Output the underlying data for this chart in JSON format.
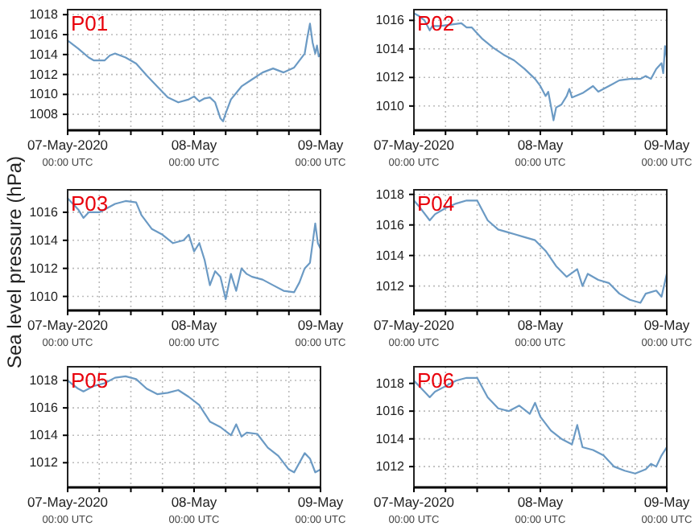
{
  "chart_data": [
    {
      "type": "line",
      "title": "P01",
      "color": "#6b9ac4",
      "grid": true,
      "ylim": [
        1006.4,
        1018.5
      ],
      "yticks": [
        1008,
        1010,
        1012,
        1014,
        1016,
        1018
      ],
      "xlim": [
        "2020-05-07T00:00",
        "2020-05-09T00:00"
      ],
      "xticks": [
        {
          "value": "2020-05-07T00:00",
          "label": "07-May-2020\n00:00 UTC"
        },
        {
          "value": "2020-05-07T06:00",
          "label": null
        },
        {
          "value": "2020-05-07T12:00",
          "label": null
        },
        {
          "value": "2020-05-07T18:00",
          "label": null
        },
        {
          "value": "2020-05-08T00:00",
          "label": "08-May\n00:00 UTC"
        },
        {
          "value": "2020-05-08T06:00",
          "label": null
        },
        {
          "value": "2020-05-08T12:00",
          "label": null
        },
        {
          "value": "2020-05-08T18:00",
          "label": null
        },
        {
          "value": "2020-05-09T00:00",
          "label": "09-May\n00:00 UTC"
        }
      ],
      "x": [
        "2020-05-07T00:00",
        "2020-05-07T02:00",
        "2020-05-07T04:00",
        "2020-05-07T05:00",
        "2020-05-07T07:00",
        "2020-05-07T08:00",
        "2020-05-07T09:00",
        "2020-05-07T11:00",
        "2020-05-07T13:00",
        "2020-05-07T15:00",
        "2020-05-07T17:00",
        "2020-05-07T19:00",
        "2020-05-07T21:00",
        "2020-05-07T23:00",
        "2020-05-08T00:00",
        "2020-05-08T01:00",
        "2020-05-08T02:00",
        "2020-05-08T03:00",
        "2020-05-08T04:00",
        "2020-05-08T05:00",
        "2020-05-08T05:30",
        "2020-05-08T06:00",
        "2020-05-08T07:00",
        "2020-05-08T09:00",
        "2020-05-08T11:00",
        "2020-05-08T13:00",
        "2020-05-08T15:00",
        "2020-05-08T17:00",
        "2020-05-08T19:00",
        "2020-05-08T21:00",
        "2020-05-08T21:30",
        "2020-05-08T22:00",
        "2020-05-08T22:30",
        "2020-05-08T23:00",
        "2020-05-08T23:20",
        "2020-05-08T23:40",
        "2020-05-09T00:00"
      ],
      "values": [
        1015.4,
        1014.6,
        1013.7,
        1013.4,
        1013.4,
        1013.9,
        1014.1,
        1013.7,
        1013.1,
        1011.9,
        1010.8,
        1009.7,
        1009.2,
        1009.5,
        1009.8,
        1009.3,
        1009.6,
        1009.7,
        1009.2,
        1007.6,
        1007.3,
        1008.1,
        1009.5,
        1010.8,
        1011.5,
        1012.2,
        1012.6,
        1012.2,
        1012.7,
        1014.1,
        1015.7,
        1017.1,
        1015.2,
        1014.1,
        1014.9,
        1013.8,
        1014.1
      ]
    },
    {
      "type": "line",
      "title": "P02",
      "color": "#6b9ac4",
      "grid": true,
      "ylim": [
        1008.3,
        1016.75
      ],
      "yticks": [
        1010,
        1012,
        1014,
        1016
      ],
      "xlim": [
        "2020-05-07T00:00",
        "2020-05-09T00:00"
      ],
      "xticks": [
        {
          "value": "2020-05-07T00:00",
          "label": "07-May-2020\n00:00 UTC"
        },
        {
          "value": "2020-05-07T06:00",
          "label": null
        },
        {
          "value": "2020-05-07T12:00",
          "label": null
        },
        {
          "value": "2020-05-07T18:00",
          "label": null
        },
        {
          "value": "2020-05-08T00:00",
          "label": "08-May\n00:00 UTC"
        },
        {
          "value": "2020-05-08T06:00",
          "label": null
        },
        {
          "value": "2020-05-08T12:00",
          "label": null
        },
        {
          "value": "2020-05-08T18:00",
          "label": null
        },
        {
          "value": "2020-05-09T00:00",
          "label": "09-May\n00:00 UTC"
        }
      ],
      "x": [
        "2020-05-07T00:00",
        "2020-05-07T01:00",
        "2020-05-07T02:00",
        "2020-05-07T03:00",
        "2020-05-07T03:30",
        "2020-05-07T05:00",
        "2020-05-07T07:00",
        "2020-05-07T09:00",
        "2020-05-07T10:00",
        "2020-05-07T11:00",
        "2020-05-07T13:00",
        "2020-05-07T15:00",
        "2020-05-07T17:00",
        "2020-05-07T19:00",
        "2020-05-07T21:00",
        "2020-05-07T23:00",
        "2020-05-08T00:00",
        "2020-05-08T01:00",
        "2020-05-08T01:30",
        "2020-05-08T02:00",
        "2020-05-08T02:30",
        "2020-05-08T03:00",
        "2020-05-08T04:00",
        "2020-05-08T05:00",
        "2020-05-08T05:30",
        "2020-05-08T06:00",
        "2020-05-08T08:00",
        "2020-05-08T10:00",
        "2020-05-08T11:00",
        "2020-05-08T13:00",
        "2020-05-08T15:00",
        "2020-05-08T17:00",
        "2020-05-08T19:00",
        "2020-05-08T20:00",
        "2020-05-08T21:00",
        "2020-05-08T22:00",
        "2020-05-08T23:00",
        "2020-05-08T23:20",
        "2020-05-08T23:40",
        "2020-05-09T00:00"
      ],
      "values": [
        1016.5,
        1016.3,
        1016.0,
        1015.3,
        1015.6,
        1015.6,
        1015.7,
        1015.8,
        1015.5,
        1015.5,
        1014.7,
        1014.1,
        1013.6,
        1013.2,
        1012.6,
        1011.9,
        1011.4,
        1010.7,
        1011.0,
        1010.0,
        1009.0,
        1009.9,
        1010.1,
        1010.7,
        1011.2,
        1010.6,
        1010.9,
        1011.4,
        1011.0,
        1011.4,
        1011.8,
        1011.9,
        1011.9,
        1012.1,
        1011.9,
        1012.6,
        1013.0,
        1012.3,
        1014.2,
        1013.4
      ]
    },
    {
      "type": "line",
      "title": "P03",
      "ylabel": "Sea level pressure (hPa)",
      "color": "#6b9ac4",
      "grid": true,
      "ylim": [
        1009.0,
        1017.6
      ],
      "yticks": [
        1010,
        1012,
        1014,
        1016
      ],
      "xlim": [
        "2020-05-07T00:00",
        "2020-05-09T00:00"
      ],
      "xticks": [
        {
          "value": "2020-05-07T00:00",
          "label": "07-May-2020\n00:00 UTC"
        },
        {
          "value": "2020-05-07T06:00",
          "label": null
        },
        {
          "value": "2020-05-07T12:00",
          "label": null
        },
        {
          "value": "2020-05-07T18:00",
          "label": null
        },
        {
          "value": "2020-05-08T00:00",
          "label": "08-May\n00:00 UTC"
        },
        {
          "value": "2020-05-08T06:00",
          "label": null
        },
        {
          "value": "2020-05-08T12:00",
          "label": null
        },
        {
          "value": "2020-05-08T18:00",
          "label": null
        },
        {
          "value": "2020-05-09T00:00",
          "label": "09-May\n00:00 UTC"
        }
      ],
      "x": [
        "2020-05-07T00:00",
        "2020-05-07T02:00",
        "2020-05-07T03:00",
        "2020-05-07T04:00",
        "2020-05-07T06:00",
        "2020-05-07T08:00",
        "2020-05-07T09:00",
        "2020-05-07T11:00",
        "2020-05-07T13:00",
        "2020-05-07T14:00",
        "2020-05-07T16:00",
        "2020-05-07T18:00",
        "2020-05-07T20:00",
        "2020-05-07T22:00",
        "2020-05-07T23:00",
        "2020-05-08T00:00",
        "2020-05-08T01:00",
        "2020-05-08T02:00",
        "2020-05-08T03:00",
        "2020-05-08T04:00",
        "2020-05-08T05:00",
        "2020-05-08T06:00",
        "2020-05-08T07:00",
        "2020-05-08T08:00",
        "2020-05-08T09:00",
        "2020-05-08T10:00",
        "2020-05-08T11:00",
        "2020-05-08T13:00",
        "2020-05-08T15:00",
        "2020-05-08T17:00",
        "2020-05-08T19:00",
        "2020-05-08T20:00",
        "2020-05-08T21:00",
        "2020-05-08T22:00",
        "2020-05-08T23:00",
        "2020-05-08T23:30",
        "2020-05-09T00:00"
      ],
      "values": [
        1017.0,
        1016.2,
        1015.6,
        1016.0,
        1016.0,
        1016.4,
        1016.6,
        1016.8,
        1016.7,
        1015.8,
        1014.8,
        1014.4,
        1013.8,
        1014.0,
        1014.4,
        1013.2,
        1013.8,
        1012.6,
        1010.8,
        1011.8,
        1011.4,
        1009.8,
        1011.6,
        1010.4,
        1012.0,
        1011.6,
        1011.4,
        1011.2,
        1010.8,
        1010.4,
        1010.3,
        1011.0,
        1012.0,
        1012.4,
        1015.2,
        1013.8,
        1013.4
      ]
    },
    {
      "type": "line",
      "title": "P04",
      "color": "#6b9ac4",
      "grid": true,
      "ylim": [
        1010.4,
        1018.3
      ],
      "yticks": [
        1012,
        1014,
        1016,
        1018
      ],
      "xlim": [
        "2020-05-07T00:00",
        "2020-05-09T00:00"
      ],
      "xticks": [
        {
          "value": "2020-05-07T00:00",
          "label": "07-May-2020\n00:00 UTC"
        },
        {
          "value": "2020-05-07T06:00",
          "label": null
        },
        {
          "value": "2020-05-07T12:00",
          "label": null
        },
        {
          "value": "2020-05-07T18:00",
          "label": null
        },
        {
          "value": "2020-05-08T00:00",
          "label": "08-May\n00:00 UTC"
        },
        {
          "value": "2020-05-08T06:00",
          "label": null
        },
        {
          "value": "2020-05-08T12:00",
          "label": null
        },
        {
          "value": "2020-05-08T18:00",
          "label": null
        },
        {
          "value": "2020-05-09T00:00",
          "label": "09-May\n00:00 UTC"
        }
      ],
      "x": [
        "2020-05-07T00:00",
        "2020-05-07T01:00",
        "2020-05-07T03:00",
        "2020-05-07T04:00",
        "2020-05-07T06:00",
        "2020-05-07T08:00",
        "2020-05-07T10:00",
        "2020-05-07T12:00",
        "2020-05-07T14:00",
        "2020-05-07T16:00",
        "2020-05-07T18:00",
        "2020-05-07T19:00",
        "2020-05-07T21:00",
        "2020-05-07T23:00",
        "2020-05-08T01:00",
        "2020-05-08T03:00",
        "2020-05-08T05:00",
        "2020-05-08T07:00",
        "2020-05-08T08:00",
        "2020-05-08T09:00",
        "2020-05-08T11:00",
        "2020-05-08T13:00",
        "2020-05-08T15:00",
        "2020-05-08T17:00",
        "2020-05-08T19:00",
        "2020-05-08T20:00",
        "2020-05-08T22:00",
        "2020-05-08T23:00",
        "2020-05-09T00:00"
      ],
      "values": [
        1017.6,
        1017.2,
        1016.3,
        1016.7,
        1017.1,
        1017.4,
        1017.6,
        1017.6,
        1016.3,
        1015.7,
        1015.5,
        1015.4,
        1015.2,
        1015.0,
        1014.3,
        1013.3,
        1012.6,
        1013.1,
        1012.0,
        1012.8,
        1012.4,
        1012.2,
        1011.5,
        1011.1,
        1010.9,
        1011.5,
        1011.7,
        1011.3,
        1012.8
      ]
    },
    {
      "type": "line",
      "title": "P05",
      "color": "#6b9ac4",
      "grid": true,
      "ylim": [
        1010.2,
        1019.0
      ],
      "yticks": [
        1012,
        1014,
        1016,
        1018
      ],
      "xlim": [
        "2020-05-07T00:00",
        "2020-05-09T00:00"
      ],
      "xticks": [
        {
          "value": "2020-05-07T00:00",
          "label": "07-May-2020\n00:00 UTC"
        },
        {
          "value": "2020-05-07T06:00",
          "label": null
        },
        {
          "value": "2020-05-07T12:00",
          "label": null
        },
        {
          "value": "2020-05-07T18:00",
          "label": null
        },
        {
          "value": "2020-05-08T00:00",
          "label": "08-May\n00:00 UTC"
        },
        {
          "value": "2020-05-08T06:00",
          "label": null
        },
        {
          "value": "2020-05-08T12:00",
          "label": null
        },
        {
          "value": "2020-05-08T18:00",
          "label": null
        },
        {
          "value": "2020-05-09T00:00",
          "label": "09-May\n00:00 UTC"
        }
      ],
      "x": [
        "2020-05-07T00:00",
        "2020-05-07T02:00",
        "2020-05-07T03:00",
        "2020-05-07T05:00",
        "2020-05-07T07:00",
        "2020-05-07T09:00",
        "2020-05-07T11:00",
        "2020-05-07T13:00",
        "2020-05-07T15:00",
        "2020-05-07T17:00",
        "2020-05-07T19:00",
        "2020-05-07T21:00",
        "2020-05-07T23:00",
        "2020-05-08T01:00",
        "2020-05-08T03:00",
        "2020-05-08T05:00",
        "2020-05-08T07:00",
        "2020-05-08T08:00",
        "2020-05-08T09:00",
        "2020-05-08T10:00",
        "2020-05-08T12:00",
        "2020-05-08T14:00",
        "2020-05-08T16:00",
        "2020-05-08T18:00",
        "2020-05-08T19:00",
        "2020-05-08T21:00",
        "2020-05-08T22:00",
        "2020-05-08T23:00",
        "2020-05-09T00:00"
      ],
      "values": [
        1018.0,
        1017.4,
        1017.2,
        1017.6,
        1017.8,
        1018.2,
        1018.3,
        1018.1,
        1017.4,
        1017.0,
        1017.1,
        1017.3,
        1016.8,
        1016.2,
        1015.0,
        1014.6,
        1014.0,
        1014.8,
        1013.9,
        1014.2,
        1014.1,
        1013.1,
        1012.5,
        1011.5,
        1011.3,
        1012.7,
        1012.3,
        1011.3,
        1011.5
      ]
    },
    {
      "type": "line",
      "title": "P06",
      "color": "#6b9ac4",
      "grid": true,
      "ylim": [
        1010.5,
        1019.2
      ],
      "yticks": [
        1012,
        1014,
        1016,
        1018
      ],
      "xlim": [
        "2020-05-07T00:00",
        "2020-05-09T00:00"
      ],
      "xticks": [
        {
          "value": "2020-05-07T00:00",
          "label": "07-May-2020\n00:00 UTC"
        },
        {
          "value": "2020-05-07T06:00",
          "label": null
        },
        {
          "value": "2020-05-07T12:00",
          "label": null
        },
        {
          "value": "2020-05-07T18:00",
          "label": null
        },
        {
          "value": "2020-05-08T00:00",
          "label": "08-May\n00:00 UTC"
        },
        {
          "value": "2020-05-08T06:00",
          "label": null
        },
        {
          "value": "2020-05-08T12:00",
          "label": null
        },
        {
          "value": "2020-05-08T18:00",
          "label": null
        },
        {
          "value": "2020-05-09T00:00",
          "label": "09-May\n00:00 UTC"
        }
      ],
      "x": [
        "2020-05-07T00:00",
        "2020-05-07T02:00",
        "2020-05-07T03:00",
        "2020-05-07T04:00",
        "2020-05-07T06:00",
        "2020-05-07T08:00",
        "2020-05-07T10:00",
        "2020-05-07T12:00",
        "2020-05-07T14:00",
        "2020-05-07T16:00",
        "2020-05-07T18:00",
        "2020-05-07T20:00",
        "2020-05-07T22:00",
        "2020-05-07T23:00",
        "2020-05-08T00:00",
        "2020-05-08T02:00",
        "2020-05-08T04:00",
        "2020-05-08T06:00",
        "2020-05-08T07:00",
        "2020-05-08T08:00",
        "2020-05-08T10:00",
        "2020-05-08T12:00",
        "2020-05-08T14:00",
        "2020-05-08T16:00",
        "2020-05-08T18:00",
        "2020-05-08T20:00",
        "2020-05-08T21:00",
        "2020-05-08T22:00",
        "2020-05-08T23:00",
        "2020-05-09T00:00"
      ],
      "values": [
        1018.2,
        1017.4,
        1017.0,
        1017.4,
        1017.8,
        1018.2,
        1018.4,
        1018.4,
        1017.0,
        1016.2,
        1016.0,
        1016.4,
        1015.8,
        1016.6,
        1015.6,
        1014.6,
        1014.0,
        1013.6,
        1015.0,
        1013.4,
        1013.2,
        1012.8,
        1012.0,
        1011.7,
        1011.5,
        1011.8,
        1012.2,
        1012.0,
        1012.8,
        1013.4
      ]
    }
  ]
}
